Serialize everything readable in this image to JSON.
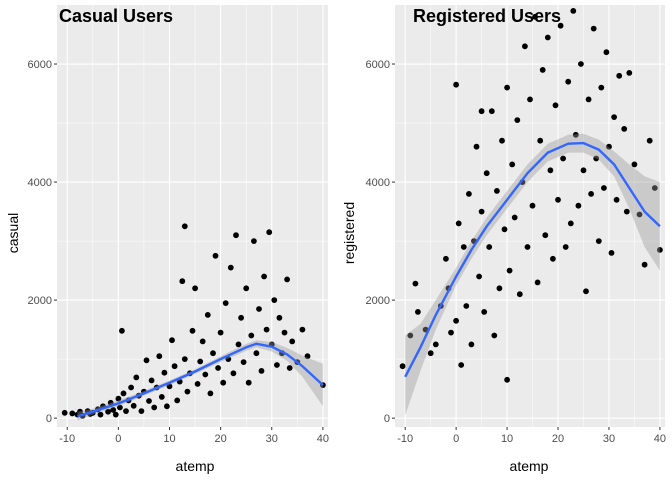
{
  "chart_data": [
    {
      "type": "scatter",
      "title": "Casual Users",
      "xlabel": "atemp",
      "ylabel": "casual",
      "xlim": [
        -12,
        41
      ],
      "ylim": [
        -150,
        7000
      ],
      "xticks": [
        -10,
        0,
        10,
        20,
        30,
        40
      ],
      "yticks": [
        0,
        2000,
        4000,
        6000
      ],
      "grid": true,
      "colors": {
        "points": "#000000",
        "smooth": "#3366ff",
        "band": "#999999",
        "panel": "#ebebeb",
        "gridline": "#ffffff"
      },
      "smooth_line": [
        [
          -8,
          30
        ],
        [
          -5,
          110
        ],
        [
          0,
          250
        ],
        [
          5,
          420
        ],
        [
          10,
          600
        ],
        [
          15,
          790
        ],
        [
          20,
          1000
        ],
        [
          25,
          1200
        ],
        [
          27,
          1260
        ],
        [
          30,
          1210
        ],
        [
          33,
          1080
        ],
        [
          36,
          880
        ],
        [
          40,
          560
        ]
      ],
      "smooth_band": [
        [
          -8,
          -40,
          110
        ],
        [
          -5,
          60,
          160
        ],
        [
          0,
          200,
          300
        ],
        [
          5,
          380,
          460
        ],
        [
          10,
          560,
          640
        ],
        [
          15,
          750,
          830
        ],
        [
          20,
          950,
          1050
        ],
        [
          25,
          1140,
          1260
        ],
        [
          27,
          1200,
          1320
        ],
        [
          30,
          1130,
          1290
        ],
        [
          33,
          970,
          1190
        ],
        [
          36,
          700,
          1060
        ],
        [
          40,
          200,
          920
        ]
      ],
      "points": [
        [
          -10.5,
          90
        ],
        [
          -9,
          80
        ],
        [
          -8,
          60
        ],
        [
          -7.5,
          110
        ],
        [
          -7,
          40
        ],
        [
          -6,
          120
        ],
        [
          -5.5,
          70
        ],
        [
          -5,
          90
        ],
        [
          -4,
          150
        ],
        [
          -3.5,
          60
        ],
        [
          -3,
          200
        ],
        [
          -2,
          110
        ],
        [
          -1.5,
          260
        ],
        [
          -1,
          140
        ],
        [
          -0.5,
          60
        ],
        [
          0,
          330
        ],
        [
          0.3,
          180
        ],
        [
          0.7,
          1480
        ],
        [
          1,
          420
        ],
        [
          1.5,
          120
        ],
        [
          2,
          300
        ],
        [
          2.5,
          520
        ],
        [
          3,
          210
        ],
        [
          3.5,
          690
        ],
        [
          4,
          380
        ],
        [
          4.5,
          120
        ],
        [
          5,
          450
        ],
        [
          5.5,
          980
        ],
        [
          6,
          290
        ],
        [
          6.5,
          640
        ],
        [
          7,
          180
        ],
        [
          7.5,
          520
        ],
        [
          8,
          1050
        ],
        [
          8.5,
          360
        ],
        [
          9,
          770
        ],
        [
          9.5,
          200
        ],
        [
          10,
          540
        ],
        [
          10.5,
          1320
        ],
        [
          11,
          880
        ],
        [
          11.5,
          300
        ],
        [
          12,
          620
        ],
        [
          12.5,
          2320
        ],
        [
          13,
          1000
        ],
        [
          13,
          3250
        ],
        [
          13.5,
          450
        ],
        [
          14,
          760
        ],
        [
          14.5,
          1480
        ],
        [
          15,
          2200
        ],
        [
          15.5,
          580
        ],
        [
          16,
          960
        ],
        [
          16.5,
          1300
        ],
        [
          17,
          740
        ],
        [
          17.5,
          1750
        ],
        [
          18,
          420
        ],
        [
          18.5,
          1100
        ],
        [
          19,
          2750
        ],
        [
          19.5,
          850
        ],
        [
          20,
          1450
        ],
        [
          20.5,
          600
        ],
        [
          21,
          1950
        ],
        [
          21.5,
          1000
        ],
        [
          22,
          2550
        ],
        [
          22.5,
          760
        ],
        [
          23,
          3100
        ],
        [
          23.5,
          1250
        ],
        [
          24,
          1700
        ],
        [
          24.5,
          950
        ],
        [
          25,
          2200
        ],
        [
          25.5,
          600
        ],
        [
          26,
          1400
        ],
        [
          26.5,
          3000
        ],
        [
          27,
          1100
        ],
        [
          27.5,
          1850
        ],
        [
          28,
          800
        ],
        [
          28.5,
          2400
        ],
        [
          29,
          1500
        ],
        [
          29.5,
          3150
        ],
        [
          30,
          1250
        ],
        [
          30.5,
          2000
        ],
        [
          31,
          900
        ],
        [
          31.5,
          1700
        ],
        [
          32,
          1100
        ],
        [
          32.5,
          1450
        ],
        [
          33,
          2350
        ],
        [
          33.5,
          850
        ],
        [
          34,
          1300
        ],
        [
          35,
          950
        ],
        [
          36,
          1500
        ],
        [
          37,
          1050
        ],
        [
          40,
          560
        ]
      ]
    },
    {
      "type": "scatter",
      "title": "Registered Users",
      "xlabel": "atemp",
      "ylabel": "registered",
      "xlim": [
        -12,
        41
      ],
      "ylim": [
        -150,
        7000
      ],
      "xticks": [
        -10,
        0,
        10,
        20,
        30,
        40
      ],
      "yticks": [
        0,
        2000,
        4000,
        6000
      ],
      "grid": true,
      "colors": {
        "points": "#000000",
        "smooth": "#3366ff",
        "band": "#999999",
        "panel": "#ebebeb",
        "gridline": "#ffffff"
      },
      "smooth_line": [
        [
          -10,
          700
        ],
        [
          -7,
          1200
        ],
        [
          -4,
          1750
        ],
        [
          0,
          2400
        ],
        [
          3,
          2850
        ],
        [
          6,
          3250
        ],
        [
          10,
          3700
        ],
        [
          14,
          4150
        ],
        [
          18,
          4500
        ],
        [
          22,
          4650
        ],
        [
          25,
          4660
        ],
        [
          28,
          4550
        ],
        [
          31,
          4300
        ],
        [
          34,
          3900
        ],
        [
          37,
          3500
        ],
        [
          40,
          3250
        ]
      ],
      "smooth_band": [
        [
          -10,
          50,
          1400
        ],
        [
          -7,
          800,
          1600
        ],
        [
          -4,
          1500,
          2000
        ],
        [
          0,
          2250,
          2550
        ],
        [
          3,
          2700,
          3000
        ],
        [
          6,
          3100,
          3400
        ],
        [
          10,
          3550,
          3850
        ],
        [
          14,
          4000,
          4300
        ],
        [
          18,
          4350,
          4650
        ],
        [
          22,
          4500,
          4800
        ],
        [
          25,
          4500,
          4820
        ],
        [
          28,
          4380,
          4720
        ],
        [
          31,
          4100,
          4520
        ],
        [
          34,
          3550,
          4300
        ],
        [
          37,
          2900,
          4100
        ],
        [
          40,
          2500,
          4000
        ]
      ],
      "points": [
        [
          -10.5,
          880
        ],
        [
          -9,
          1400
        ],
        [
          -8,
          2280
        ],
        [
          -7.5,
          1800
        ],
        [
          -6,
          1500
        ],
        [
          -5,
          1100
        ],
        [
          -4,
          1250
        ],
        [
          -3,
          1900
        ],
        [
          -2,
          2700
        ],
        [
          -1.5,
          2200
        ],
        [
          -1,
          1450
        ],
        [
          0,
          5650
        ],
        [
          0,
          1650
        ],
        [
          0.5,
          3300
        ],
        [
          1,
          900
        ],
        [
          1.5,
          2900
        ],
        [
          2,
          1900
        ],
        [
          2.5,
          3800
        ],
        [
          3,
          1250
        ],
        [
          3.5,
          3000
        ],
        [
          4,
          4600
        ],
        [
          4.5,
          2400
        ],
        [
          5,
          3500
        ],
        [
          5,
          5200
        ],
        [
          5.5,
          1800
        ],
        [
          6,
          4150
        ],
        [
          6.5,
          2900
        ],
        [
          7,
          5200
        ],
        [
          7.5,
          1400
        ],
        [
          8,
          3850
        ],
        [
          8.5,
          2200
        ],
        [
          9,
          4700
        ],
        [
          9.5,
          3200
        ],
        [
          10,
          5600
        ],
        [
          10,
          650
        ],
        [
          10.5,
          2500
        ],
        [
          11,
          4300
        ],
        [
          11.5,
          3400
        ],
        [
          12,
          5050
        ],
        [
          12.5,
          2100
        ],
        [
          13,
          4000
        ],
        [
          13.5,
          6300
        ],
        [
          14,
          2900
        ],
        [
          14.5,
          5400
        ],
        [
          15,
          3600
        ],
        [
          15.5,
          6800
        ],
        [
          16,
          2300
        ],
        [
          16.5,
          4700
        ],
        [
          17,
          5900
        ],
        [
          17.5,
          3100
        ],
        [
          18,
          6450
        ],
        [
          18.5,
          4200
        ],
        [
          19,
          2700
        ],
        [
          19.5,
          5300
        ],
        [
          20,
          3700
        ],
        [
          20.5,
          6650
        ],
        [
          21,
          4400
        ],
        [
          21.5,
          2900
        ],
        [
          22,
          5700
        ],
        [
          22.5,
          3300
        ],
        [
          23,
          6900
        ],
        [
          23.5,
          4800
        ],
        [
          24,
          3600
        ],
        [
          24.5,
          6000
        ],
        [
          25,
          4200
        ],
        [
          25.5,
          2150
        ],
        [
          26,
          5400
        ],
        [
          26.5,
          3800
        ],
        [
          27,
          6600
        ],
        [
          27.5,
          4400
        ],
        [
          28,
          3000
        ],
        [
          28.5,
          5600
        ],
        [
          29,
          3900
        ],
        [
          29.5,
          6200
        ],
        [
          30,
          4600
        ],
        [
          30.5,
          2800
        ],
        [
          31,
          5100
        ],
        [
          31.5,
          3700
        ],
        [
          32,
          5800
        ],
        [
          33,
          4900
        ],
        [
          33.5,
          3500
        ],
        [
          34,
          5850
        ],
        [
          35,
          4300
        ],
        [
          36,
          3450
        ],
        [
          37,
          2600
        ],
        [
          38,
          4700
        ],
        [
          39,
          3900
        ],
        [
          40,
          2850
        ]
      ]
    }
  ]
}
